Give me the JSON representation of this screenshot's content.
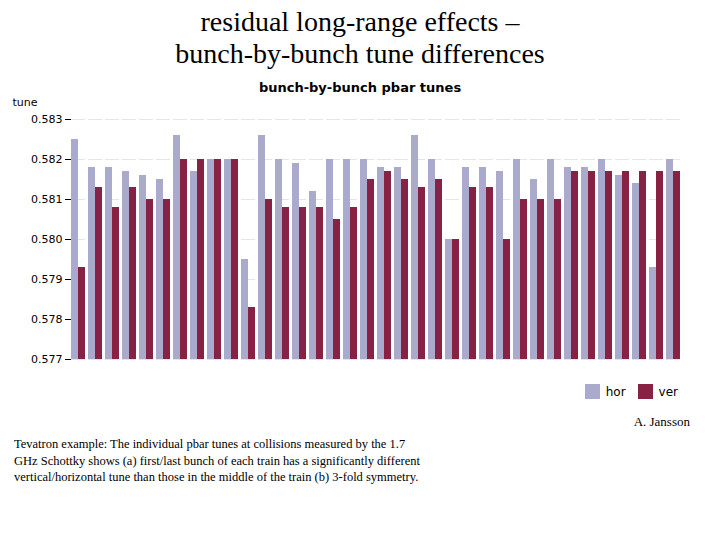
{
  "chart_data": {
    "type": "bar",
    "title": [
      "residual long-range effects –",
      "bunch-by-bunch tune differences"
    ],
    "subtitle": "bunch-by-bunch pbar tunes",
    "ylabel": "tune",
    "annotations": [
      "A. Jansson"
    ],
    "caption": [
      "Tevatron example: The individual pbar tunes at collisions measured by the 1.7",
      "GHz Schottky shows (a) first/last bunch of each train has a significantly different",
      "vertical/horizontal tune than those in the middle of the train (b) 3-fold symmetry."
    ],
    "categories": [
      null,
      null,
      null,
      null,
      null,
      null,
      null,
      null,
      null,
      null,
      null,
      null,
      null,
      null,
      null,
      null,
      null,
      null,
      null,
      null,
      null,
      null,
      null,
      null,
      null,
      null,
      null,
      null,
      null,
      null,
      null,
      null,
      null,
      null,
      null,
      null
    ],
    "series": [
      {
        "name": "hor",
        "color": "#AAAACC",
        "values": [
          0.5825,
          0.5818,
          0.5818,
          0.5817,
          0.5816,
          0.5815,
          0.5826,
          0.5817,
          0.582,
          0.582,
          0.5795,
          0.5826,
          0.582,
          0.5819,
          0.5812,
          0.582,
          0.582,
          0.582,
          0.5818,
          0.5818,
          0.5826,
          0.582,
          0.58,
          0.5818,
          0.5818,
          0.5817,
          0.582,
          0.5815,
          0.582,
          0.5818,
          0.5818,
          0.582,
          0.5816,
          0.5814,
          0.5793,
          0.582
        ]
      },
      {
        "name": "ver",
        "color": "#882244",
        "values": [
          0.5793,
          0.5813,
          0.5808,
          0.5813,
          0.581,
          0.581,
          0.582,
          0.582,
          0.582,
          0.582,
          0.5783,
          0.581,
          0.5808,
          0.5808,
          0.5808,
          0.5805,
          0.5808,
          0.5815,
          0.5817,
          0.5815,
          0.5813,
          0.5815,
          0.58,
          0.5813,
          0.5813,
          0.58,
          0.581,
          0.581,
          0.581,
          0.5817,
          0.5817,
          0.5817,
          0.5817,
          0.5817,
          0.5817,
          0.5817
        ]
      }
    ],
    "ylim": [
      0.577,
      0.583
    ],
    "yticks": [
      0.577,
      0.578,
      0.579,
      {
        "value": 0.58,
        "label": "0.580"
      },
      0.581,
      0.582,
      0.583
    ],
    "grid": true,
    "legend": "lower right",
    "tick_labels": "y"
  }
}
